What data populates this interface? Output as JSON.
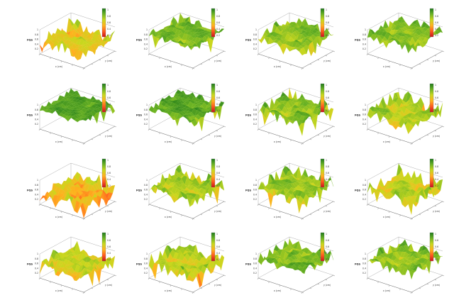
{
  "chart_data": [
    {
      "panel": 1,
      "type": "surface3d",
      "zlabel": "FQS",
      "xlabel": "x (cm)",
      "ylabel": "y (cm)",
      "zticks": [
        "0.2",
        "0.4",
        "0.6",
        "0.8",
        "1"
      ],
      "colorbar_ticks": [
        "1",
        "0.8",
        "0.6",
        "0.4",
        "0.2"
      ],
      "colormap": [
        "#c8141c",
        "#ff5a1e",
        "#ffb21e",
        "#c9d81e",
        "#6cb424",
        "#1f7a1c"
      ],
      "dominant_level": 0.55,
      "roughness": 0.55,
      "seed": 11
    },
    {
      "panel": 2,
      "type": "surface3d",
      "zlabel": "FQS",
      "xlabel": "x (cm)",
      "ylabel": "y (cm)",
      "zticks": [
        "0.2",
        "0.4",
        "0.6",
        "0.8",
        "1"
      ],
      "colorbar_ticks": [
        "1",
        "0.8",
        "0.6",
        "0.4",
        "0.2"
      ],
      "colormap": [
        "#c8141c",
        "#ff5a1e",
        "#ffb21e",
        "#c9d81e",
        "#6cb424",
        "#1f7a1c"
      ],
      "dominant_level": 0.85,
      "roughness": 0.35,
      "seed": 23
    },
    {
      "panel": 3,
      "type": "surface3d",
      "zlabel": "FQS",
      "xlabel": "x (cm)",
      "ylabel": "y (cm)",
      "zticks": [
        "0.2",
        "0.4",
        "0.6",
        "0.8",
        "1"
      ],
      "colorbar_ticks": [
        "1",
        "0.8",
        "0.6",
        "0.4",
        "0.2"
      ],
      "colormap": [
        "#c8141c",
        "#ff5a1e",
        "#ffb21e",
        "#c9d81e",
        "#6cb424",
        "#1f7a1c"
      ],
      "dominant_level": 0.75,
      "roughness": 0.45,
      "seed": 37
    },
    {
      "panel": 4,
      "type": "surface3d",
      "zlabel": "FQS",
      "xlabel": "x (cm)",
      "ylabel": "y (cm)",
      "zticks": [
        "0.2",
        "0.4",
        "0.6",
        "0.8",
        "1"
      ],
      "colorbar_ticks": [
        "1",
        "0.8",
        "0.6",
        "0.4",
        "0.2"
      ],
      "colormap": [
        "#c8141c",
        "#ff5a1e",
        "#ffb21e",
        "#c9d81e",
        "#6cb424",
        "#1f7a1c"
      ],
      "dominant_level": 0.8,
      "roughness": 0.4,
      "seed": 41
    },
    {
      "panel": 5,
      "type": "surface3d",
      "zlabel": "FQS",
      "xlabel": "x (cm)",
      "ylabel": "y (cm)",
      "zticks": [
        "0.2",
        "0.4",
        "0.6",
        "0.8",
        "1"
      ],
      "colorbar_ticks": [
        "1",
        "0.8",
        "0.6",
        "0.4",
        "0.2"
      ],
      "colormap": [
        "#c8141c",
        "#ff5a1e",
        "#ffb21e",
        "#c9d81e",
        "#6cb424",
        "#1f7a1c"
      ],
      "dominant_level": 0.9,
      "roughness": 0.25,
      "seed": 53
    },
    {
      "panel": 6,
      "type": "surface3d",
      "zlabel": "FQS",
      "xlabel": "x (cm)",
      "ylabel": "y (cm)",
      "zticks": [
        "0.2",
        "0.4",
        "0.6",
        "0.8",
        "1"
      ],
      "colorbar_ticks": [
        "1",
        "0.8",
        "0.6",
        "0.4",
        "0.2"
      ],
      "colormap": [
        "#c8141c",
        "#ff5a1e",
        "#ffb21e",
        "#c9d81e",
        "#6cb424",
        "#1f7a1c"
      ],
      "dominant_level": 0.88,
      "roughness": 0.3,
      "seed": 61
    },
    {
      "panel": 7,
      "type": "surface3d",
      "zlabel": "FQS",
      "xlabel": "x (cm)",
      "ylabel": "y (cm)",
      "zticks": [
        "0.2",
        "0.4",
        "0.6",
        "0.8",
        "1"
      ],
      "colorbar_ticks": [
        "1",
        "0.8",
        "0.6",
        "0.4",
        "0.2"
      ],
      "colormap": [
        "#c8141c",
        "#ff5a1e",
        "#ffb21e",
        "#c9d81e",
        "#6cb424",
        "#1f7a1c"
      ],
      "dominant_level": 0.78,
      "roughness": 0.45,
      "seed": 71
    },
    {
      "panel": 8,
      "type": "surface3d",
      "zlabel": "FQS",
      "xlabel": "x (cm)",
      "ylabel": "y (cm)",
      "zticks": [
        "0.2",
        "0.4",
        "0.6",
        "0.8",
        "1"
      ],
      "colorbar_ticks": [
        "1",
        "0.8",
        "0.6",
        "0.4",
        "0.2"
      ],
      "colormap": [
        "#c8141c",
        "#ff5a1e",
        "#ffb21e",
        "#c9d81e",
        "#6cb424",
        "#1f7a1c"
      ],
      "dominant_level": 0.72,
      "roughness": 0.5,
      "seed": 83
    },
    {
      "panel": 9,
      "type": "surface3d",
      "zlabel": "FQS",
      "xlabel": "x (cm)",
      "ylabel": "y (cm)",
      "zticks": [
        "0.2",
        "0.4",
        "0.6",
        "0.8",
        "1"
      ],
      "colorbar_ticks": [
        "1",
        "0.8",
        "0.6",
        "0.4",
        "0.2"
      ],
      "colormap": [
        "#c8141c",
        "#ff5a1e",
        "#ffb21e",
        "#c9d81e",
        "#6cb424",
        "#1f7a1c"
      ],
      "dominant_level": 0.5,
      "roughness": 0.75,
      "seed": 97
    },
    {
      "panel": 10,
      "type": "surface3d",
      "zlabel": "FQS",
      "xlabel": "x (cm)",
      "ylabel": "y (cm)",
      "zticks": [
        "0.2",
        "0.4",
        "0.6",
        "0.8",
        "1"
      ],
      "colorbar_ticks": [
        "1",
        "0.8",
        "0.6",
        "0.4",
        "0.2"
      ],
      "colormap": [
        "#c8141c",
        "#ff5a1e",
        "#ffb21e",
        "#c9d81e",
        "#6cb424",
        "#1f7a1c"
      ],
      "dominant_level": 0.7,
      "roughness": 0.5,
      "seed": 103
    },
    {
      "panel": 11,
      "type": "surface3d",
      "zlabel": "FQS",
      "xlabel": "x (cm)",
      "ylabel": "y (cm)",
      "zticks": [
        "0.2",
        "0.4",
        "0.6",
        "0.8",
        "1"
      ],
      "colorbar_ticks": [
        "1",
        "0.8",
        "0.6",
        "0.4",
        "0.2"
      ],
      "colormap": [
        "#c8141c",
        "#ff5a1e",
        "#ffb21e",
        "#c9d81e",
        "#6cb424",
        "#1f7a1c"
      ],
      "dominant_level": 0.75,
      "roughness": 0.48,
      "seed": 113
    },
    {
      "panel": 12,
      "type": "surface3d",
      "zlabel": "FQS",
      "xlabel": "x (cm)",
      "ylabel": "y (cm)",
      "zticks": [
        "0.2",
        "0.4",
        "0.6",
        "0.8",
        "1"
      ],
      "colorbar_ticks": [
        "1",
        "0.8",
        "0.6",
        "0.4",
        "0.2"
      ],
      "colormap": [
        "#c8141c",
        "#ff5a1e",
        "#ffb21e",
        "#c9d81e",
        "#6cb424",
        "#1f7a1c"
      ],
      "dominant_level": 0.65,
      "roughness": 0.6,
      "seed": 127
    },
    {
      "panel": 13,
      "type": "surface3d",
      "zlabel": "FQS",
      "xlabel": "x (cm)",
      "ylabel": "y (cm)",
      "zticks": [
        "0.2",
        "0.4",
        "0.6",
        "0.8",
        "1"
      ],
      "colorbar_ticks": [
        "1",
        "0.8",
        "0.6",
        "0.4",
        "0.2"
      ],
      "colormap": [
        "#c8141c",
        "#ff5a1e",
        "#ffb21e",
        "#c9d81e",
        "#6cb424",
        "#1f7a1c"
      ],
      "dominant_level": 0.62,
      "roughness": 0.5,
      "seed": 131
    },
    {
      "panel": 14,
      "type": "surface3d",
      "zlabel": "FQS",
      "xlabel": "x (cm)",
      "ylabel": "y (cm)",
      "zticks": [
        "0.2",
        "0.4",
        "0.6",
        "0.8",
        "1"
      ],
      "colorbar_ticks": [
        "1",
        "0.8",
        "0.6",
        "0.4",
        "0.2"
      ],
      "colormap": [
        "#c8141c",
        "#ff5a1e",
        "#ffb21e",
        "#c9d81e",
        "#6cb424",
        "#1f7a1c"
      ],
      "dominant_level": 0.65,
      "roughness": 0.5,
      "seed": 139
    },
    {
      "panel": 15,
      "type": "surface3d",
      "zlabel": "FQS",
      "xlabel": "x (cm)",
      "ylabel": "y (cm)",
      "zticks": [
        "0.2",
        "0.4",
        "0.6",
        "0.8",
        "1"
      ],
      "colorbar_ticks": [
        "1",
        "0.8",
        "0.6",
        "0.4",
        "0.2"
      ],
      "colormap": [
        "#c8141c",
        "#ff5a1e",
        "#ffb21e",
        "#c9d81e",
        "#6cb424",
        "#1f7a1c"
      ],
      "dominant_level": 0.8,
      "roughness": 0.45,
      "seed": 149
    },
    {
      "panel": 16,
      "type": "surface3d",
      "zlabel": "FQS",
      "xlabel": "x (cm)",
      "ylabel": "y (cm)",
      "zticks": [
        "0.2",
        "0.4",
        "0.6",
        "0.8",
        "1"
      ],
      "colorbar_ticks": [
        "1",
        "0.8",
        "0.6",
        "0.4",
        "0.2"
      ],
      "colormap": [
        "#c8141c",
        "#ff5a1e",
        "#ffb21e",
        "#c9d81e",
        "#6cb424",
        "#1f7a1c"
      ],
      "dominant_level": 0.78,
      "roughness": 0.45,
      "seed": 157
    }
  ]
}
